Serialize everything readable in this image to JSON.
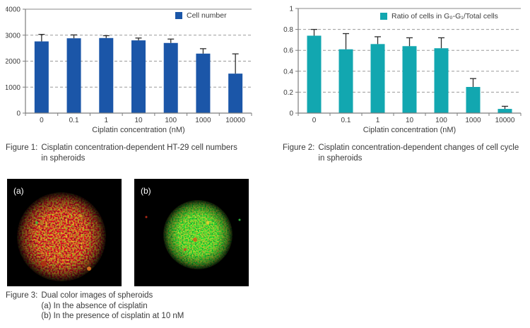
{
  "colors": {
    "figure1_bar": "#1b56a8",
    "figure2_bar": "#12a7b0",
    "grid_line": "#9a9a9a",
    "top_border_line": "#8a8a8a",
    "axis_line": "#7d7d7d",
    "error_bar": "#2e2e2e",
    "chart_text": "#3c3c3c",
    "caption_text": "#3a3a3a",
    "image_background": "#000000",
    "image_label_text": "#ffffff"
  },
  "chart_data": [
    {
      "type": "bar",
      "title": "",
      "legend": "Cell number",
      "legend_position": "top-right",
      "categories": [
        "0",
        "0.1",
        "1",
        "10",
        "100",
        "1000",
        "10000"
      ],
      "values": [
        2760,
        2880,
        2890,
        2800,
        2700,
        2290,
        1520
      ],
      "errors_upper": [
        270,
        130,
        90,
        90,
        150,
        190,
        760
      ],
      "xlabel": "Ciplatin concentration (nM)",
      "ylabel": "",
      "ylim": [
        0,
        4000
      ],
      "yticks": [
        0,
        1000,
        2000,
        3000,
        4000
      ],
      "ytick_labels": [
        "0",
        "1000",
        "2000",
        "3000",
        "4000"
      ],
      "grid": "dashed horizontal"
    },
    {
      "type": "bar",
      "title": "",
      "legend": "Ratio of cells in G₀-G₁/Total cells",
      "legend_position": "top-right",
      "categories": [
        "0",
        "0.1",
        "1",
        "10",
        "100",
        "1000",
        "10000"
      ],
      "values": [
        0.74,
        0.61,
        0.66,
        0.64,
        0.62,
        0.25,
        0.04
      ],
      "errors_upper": [
        0.06,
        0.15,
        0.07,
        0.08,
        0.1,
        0.08,
        0.025
      ],
      "xlabel": "Ciplatin concentration (nM)",
      "ylabel": "",
      "ylim": [
        0,
        1
      ],
      "yticks": [
        0,
        0.2,
        0.4,
        0.6,
        0.8,
        1
      ],
      "ytick_labels": [
        "0",
        "0.2",
        "0.4",
        "0.6",
        "0.8",
        "1"
      ],
      "grid": "dashed horizontal"
    }
  ],
  "figure1": {
    "prefix": "Figure 1:",
    "line1": "Cisplatin concentration-dependent HT-29 cell numbers",
    "line2": "in spheroids"
  },
  "figure2": {
    "prefix": "Figure 2:",
    "line1": "Cisplatin concentration-dependent changes of cell cycle",
    "line2": "in spheroids"
  },
  "figure3": {
    "prefix": "Figure 3:",
    "line1": "Dual color images of spheroids",
    "line2": "(a) In the absence of cisplatin",
    "line3": "(b) In the presence of cisplatin at 10 nM",
    "label_a": "(a)",
    "label_b": "(b)"
  }
}
